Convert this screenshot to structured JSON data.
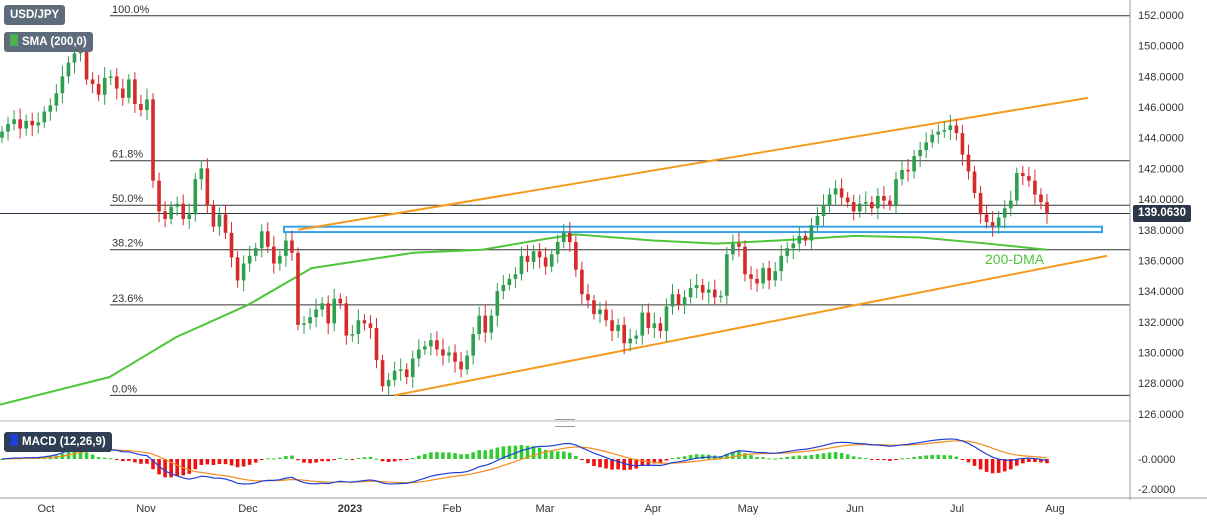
{
  "header": {
    "symbol": "USD/JPY",
    "indicator": "SMA (200,0)",
    "indicator_color": "#4caf50"
  },
  "macd": {
    "label": "MACD (12,26,9)",
    "icon": "macd-color-swatch",
    "macd_color": "#1f3fd6",
    "signal_color": "#f28c1e",
    "hist_pos_color": "#33cc33",
    "hist_neg_color": "#ee1111"
  },
  "price_badge": "139.0630",
  "annotations": {
    "dma_label": "200-DMA"
  },
  "colors": {
    "channel": "#f59a1c",
    "sma": "#4fc53a",
    "support_zone": "#3aa0e8",
    "candle_up": "#2e9e4f",
    "candle_down": "#d62b2b"
  },
  "chart_data": {
    "type": "candlestick",
    "y_ticks": [
      "152.0000",
      "150.0000",
      "148.0000",
      "146.0000",
      "144.0000",
      "142.0000",
      "140.0000",
      "138.0000",
      "136.0000",
      "134.0000",
      "132.0000",
      "130.0000",
      "128.0000",
      "126.0000"
    ],
    "ylim": [
      126,
      152
    ],
    "x_labels": [
      "Oct",
      "Nov",
      "Dec",
      "2023",
      "Feb",
      "Mar",
      "Apr",
      "May",
      "Jun",
      "Jul",
      "Aug"
    ],
    "macd_ticks": [
      "-0.0000",
      "-2.0000"
    ],
    "fib_levels": [
      {
        "label": "100.0%",
        "value": 151.95
      },
      {
        "label": "61.8%",
        "value": 142.5
      },
      {
        "label": "50.0%",
        "value": 139.6
      },
      {
        "label": "38.2%",
        "value": 136.7
      },
      {
        "label": "23.6%",
        "value": 133.1
      },
      {
        "label": "0.0%",
        "value": 127.2
      }
    ],
    "current_price": 139.063,
    "support_zone": [
      137.85,
      138.2
    ],
    "upper_channel": {
      "x": [
        "Dec 16",
        "Jul 28"
      ],
      "y": [
        138.0,
        146.6
      ]
    },
    "lower_channel": {
      "x": [
        "Jan 16",
        "Aug 10"
      ],
      "y": [
        127.2,
        136.3
      ]
    },
    "sma_200": {
      "x": [
        "Oct 1",
        "Oct 20",
        "Nov 10",
        "Dec 1",
        "Dec 20",
        "Jan 20",
        "Feb 10",
        "Mar 1",
        "Mar 10",
        "Apr 1",
        "Apr 20",
        "May 10",
        "Jun 1",
        "Jun 20",
        "Jul 10",
        "Jul 28"
      ],
      "y": [
        126.6,
        128.4,
        131.0,
        133.1,
        135.5,
        136.5,
        136.7,
        137.4,
        137.7,
        137.3,
        137.1,
        137.3,
        137.6,
        137.5,
        137.1,
        136.7
      ]
    },
    "candles_close": [
      144.4,
      144.9,
      145.2,
      144.6,
      145.1,
      144.8,
      145.0,
      145.7,
      146.1,
      146.9,
      148.0,
      148.9,
      149.5,
      149.9,
      147.8,
      147.5,
      146.8,
      147.9,
      148.0,
      147.2,
      146.6,
      147.8,
      146.2,
      145.8,
      146.5,
      141.2,
      139.2,
      138.7,
      139.5,
      139.7,
      138.7,
      139.0,
      141.3,
      142.0,
      139.6,
      138.2,
      139.0,
      137.8,
      136.2,
      134.7,
      135.8,
      136.3,
      136.8,
      137.9,
      136.9,
      135.8,
      136.3,
      137.3,
      136.5,
      131.8,
      131.9,
      132.3,
      132.8,
      133.2,
      131.9,
      133.5,
      133.2,
      131.1,
      131.2,
      132.1,
      131.9,
      131.6,
      129.5,
      127.8,
      128.2,
      128.8,
      128.9,
      128.4,
      129.6,
      130.2,
      130.4,
      130.8,
      130.2,
      129.8,
      130.0,
      129.4,
      128.9,
      129.8,
      131.2,
      132.4,
      131.3,
      132.4,
      134.0,
      134.4,
      134.8,
      135.1,
      136.3,
      135.9,
      136.6,
      136.2,
      135.6,
      136.4,
      137.2,
      137.8,
      137.2,
      135.4,
      133.8,
      133.4,
      132.5,
      132.8,
      132.1,
      131.4,
      131.8,
      130.6,
      130.9,
      131.1,
      132.6,
      131.6,
      131.9,
      131.4,
      133.0,
      133.8,
      133.1,
      133.6,
      134.2,
      134.4,
      133.9,
      134.1,
      133.6,
      133.7,
      136.4,
      137.1,
      136.9,
      135.1,
      134.8,
      134.5,
      135.5,
      134.7,
      135.3,
      136.3,
      136.8,
      137.1,
      137.6,
      137.3,
      138.3,
      138.9,
      139.6,
      140.3,
      140.7,
      140.1,
      139.8,
      139.2,
      139.7,
      139.8,
      139.4,
      140.2,
      139.9,
      139.6,
      141.3,
      141.9,
      141.8,
      142.8,
      143.2,
      143.7,
      144.2,
      144.4,
      144.5,
      144.8,
      144.3,
      142.9,
      141.8,
      140.4,
      139.0,
      138.5,
      138.2,
      138.8,
      139.4,
      139.9,
      141.7,
      141.5,
      141.2,
      140.3,
      139.8,
      139.1
    ]
  }
}
